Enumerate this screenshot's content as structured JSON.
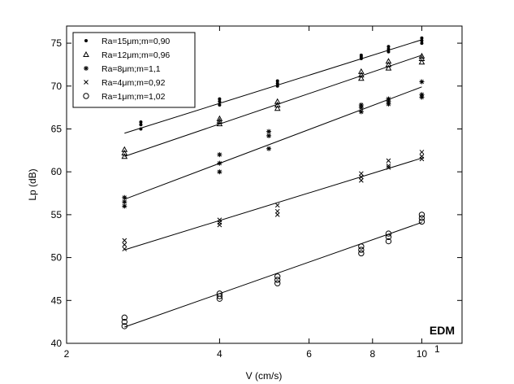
{
  "chart_data": {
    "type": "scatter",
    "title": "",
    "xlabel": "V (cm/s)",
    "ylabel": "Lp (dB)",
    "xscale": "log",
    "xlim": [
      2,
      12
    ],
    "ylim": [
      40,
      77
    ],
    "x_ticks": [
      {
        "value": 2,
        "label": "2"
      },
      {
        "value": 4,
        "label": "4"
      },
      {
        "value": 6,
        "label": "6"
      },
      {
        "value": 8,
        "label": "8"
      },
      {
        "value": 10,
        "label": "10"
      }
    ],
    "x_tick_exponent": "1",
    "y_ticks": [
      40,
      45,
      50,
      55,
      60,
      65,
      70,
      75
    ],
    "grid": false,
    "legend_position": "top-left",
    "annotation": "EDM",
    "colors": {
      "marks": "#000000",
      "background": "#ffffff"
    },
    "series": [
      {
        "name": "Ra=15μm;m=0,90",
        "marker": "dot",
        "points": [
          [
            2.8,
            65.0
          ],
          [
            2.8,
            65.5
          ],
          [
            2.8,
            65.8
          ],
          [
            4.0,
            67.8
          ],
          [
            4.0,
            68.2
          ],
          [
            4.0,
            68.5
          ],
          [
            5.2,
            70.0
          ],
          [
            5.2,
            70.3
          ],
          [
            5.2,
            70.6
          ],
          [
            7.6,
            73.2
          ],
          [
            7.6,
            73.4
          ],
          [
            7.6,
            73.6
          ],
          [
            8.6,
            74.0
          ],
          [
            8.6,
            74.3
          ],
          [
            8.6,
            74.6
          ],
          [
            10.0,
            75.0
          ],
          [
            10.0,
            75.3
          ],
          [
            10.0,
            75.6
          ]
        ],
        "fit": [
          [
            2.6,
            64.5
          ],
          [
            10.0,
            75.4
          ]
        ]
      },
      {
        "name": "Ra=12μm;m=0,96",
        "marker": "triangle",
        "points": [
          [
            2.6,
            61.8
          ],
          [
            2.6,
            62.2
          ],
          [
            2.6,
            62.6
          ],
          [
            4.0,
            65.6
          ],
          [
            4.0,
            65.9
          ],
          [
            4.0,
            66.2
          ],
          [
            5.2,
            67.4
          ],
          [
            5.2,
            67.8
          ],
          [
            5.2,
            68.2
          ],
          [
            7.6,
            70.9
          ],
          [
            7.6,
            71.3
          ],
          [
            7.6,
            71.7
          ],
          [
            8.6,
            72.1
          ],
          [
            8.6,
            72.5
          ],
          [
            8.6,
            72.9
          ],
          [
            10.0,
            72.8
          ],
          [
            10.0,
            73.2
          ],
          [
            10.0,
            73.5
          ]
        ],
        "fit": [
          [
            2.6,
            61.8
          ],
          [
            10.0,
            73.6
          ]
        ]
      },
      {
        "name": "Ra=8μm;m=1,1",
        "marker": "asterisk",
        "points": [
          [
            2.6,
            56.0
          ],
          [
            2.6,
            56.5
          ],
          [
            2.6,
            57.0
          ],
          [
            4.0,
            60.0
          ],
          [
            4.0,
            61.0
          ],
          [
            4.0,
            62.0
          ],
          [
            5.0,
            62.7
          ],
          [
            5.0,
            64.2
          ],
          [
            5.0,
            64.7
          ],
          [
            7.6,
            67.0
          ],
          [
            7.6,
            67.5
          ],
          [
            7.6,
            67.8
          ],
          [
            8.6,
            67.9
          ],
          [
            8.6,
            68.2
          ],
          [
            8.6,
            68.5
          ],
          [
            10.0,
            68.7
          ],
          [
            10.0,
            69.0
          ],
          [
            10.0,
            70.5
          ]
        ],
        "fit": [
          [
            2.6,
            56.8
          ],
          [
            10.0,
            69.9
          ]
        ]
      },
      {
        "name": "Ra=4μm;m=0,92",
        "marker": "cross",
        "points": [
          [
            2.6,
            51.0
          ],
          [
            2.6,
            51.5
          ],
          [
            2.6,
            52.0
          ],
          [
            4.0,
            53.8
          ],
          [
            4.0,
            54.1
          ],
          [
            4.0,
            54.4
          ],
          [
            5.2,
            55.0
          ],
          [
            5.2,
            55.4
          ],
          [
            5.2,
            56.1
          ],
          [
            7.6,
            59.0
          ],
          [
            7.6,
            59.4
          ],
          [
            7.6,
            59.8
          ],
          [
            8.6,
            60.5
          ],
          [
            8.6,
            60.7
          ],
          [
            8.6,
            61.3
          ],
          [
            10.0,
            61.5
          ],
          [
            10.0,
            61.8
          ],
          [
            10.0,
            62.3
          ]
        ],
        "fit": [
          [
            2.6,
            50.9
          ],
          [
            10.0,
            61.6
          ]
        ]
      },
      {
        "name": "Ra=1μm;m=1,02",
        "marker": "circle",
        "points": [
          [
            2.6,
            42.0
          ],
          [
            2.6,
            42.5
          ],
          [
            2.6,
            43.0
          ],
          [
            4.0,
            45.2
          ],
          [
            4.0,
            45.5
          ],
          [
            4.0,
            45.8
          ],
          [
            5.2,
            47.0
          ],
          [
            5.2,
            47.4
          ],
          [
            5.2,
            47.8
          ],
          [
            7.6,
            50.5
          ],
          [
            7.6,
            50.9
          ],
          [
            7.6,
            51.3
          ],
          [
            8.6,
            51.9
          ],
          [
            8.6,
            52.4
          ],
          [
            8.6,
            52.8
          ],
          [
            10.0,
            54.2
          ],
          [
            10.0,
            54.6
          ],
          [
            10.0,
            55.0
          ]
        ],
        "fit": [
          [
            2.6,
            41.9
          ],
          [
            10.0,
            54.1
          ]
        ]
      }
    ]
  }
}
